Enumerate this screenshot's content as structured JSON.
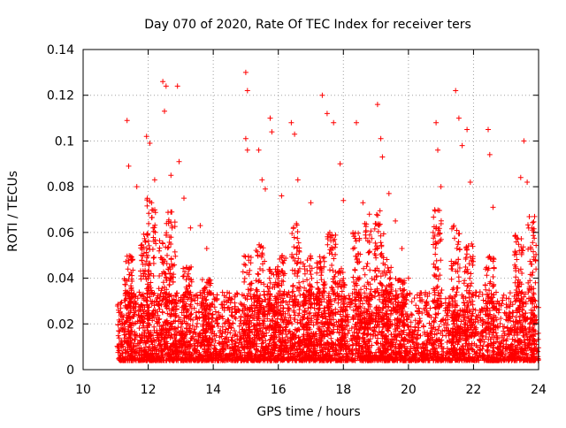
{
  "chart_data": {
    "type": "scatter",
    "title": "Day 070 of 2020, Rate Of TEC Index for receiver ters",
    "xlabel": "GPS time / hours",
    "ylabel": "ROTI / TECUs",
    "xlim": [
      10,
      24
    ],
    "ylim": [
      0,
      0.14
    ],
    "x_ticks": [
      10,
      12,
      14,
      16,
      18,
      20,
      22,
      24
    ],
    "x_tick_labels": [
      "10",
      "12",
      "14",
      "16",
      "18",
      "20",
      "22",
      "24"
    ],
    "y_ticks": [
      0,
      0.02,
      0.04,
      0.06,
      0.08,
      0.1,
      0.12,
      0.14
    ],
    "y_tick_labels": [
      "0",
      "0.02",
      "0.04",
      "0.06",
      "0.08",
      "0.1",
      "0.12",
      "0.14"
    ],
    "grid": true,
    "marker": "plus",
    "series": [
      {
        "name": "ROTI",
        "color": "#ff0000",
        "data_extent": {
          "x_start": 11.05,
          "x_end": 24.0
        },
        "peaks": [
          [
            11.35,
            0.109
          ],
          [
            11.4,
            0.089
          ],
          [
            11.65,
            0.08
          ],
          [
            11.95,
            0.102
          ],
          [
            12.05,
            0.099
          ],
          [
            12.2,
            0.083
          ],
          [
            12.45,
            0.126
          ],
          [
            12.55,
            0.124
          ],
          [
            12.5,
            0.113
          ],
          [
            12.7,
            0.085
          ],
          [
            12.9,
            0.124
          ],
          [
            12.95,
            0.091
          ],
          [
            13.1,
            0.075
          ],
          [
            13.3,
            0.062
          ],
          [
            13.6,
            0.063
          ],
          [
            13.8,
            0.053
          ],
          [
            15.0,
            0.13
          ],
          [
            15.05,
            0.122
          ],
          [
            15.0,
            0.101
          ],
          [
            15.05,
            0.096
          ],
          [
            15.4,
            0.096
          ],
          [
            15.5,
            0.083
          ],
          [
            15.6,
            0.079
          ],
          [
            15.75,
            0.11
          ],
          [
            15.8,
            0.104
          ],
          [
            16.1,
            0.076
          ],
          [
            16.4,
            0.108
          ],
          [
            16.5,
            0.103
          ],
          [
            16.6,
            0.083
          ],
          [
            17.0,
            0.073
          ],
          [
            17.35,
            0.12
          ],
          [
            17.5,
            0.112
          ],
          [
            17.7,
            0.108
          ],
          [
            17.9,
            0.09
          ],
          [
            18.0,
            0.074
          ],
          [
            18.4,
            0.108
          ],
          [
            18.6,
            0.073
          ],
          [
            18.8,
            0.068
          ],
          [
            19.05,
            0.116
          ],
          [
            19.15,
            0.101
          ],
          [
            19.2,
            0.093
          ],
          [
            19.4,
            0.077
          ],
          [
            19.6,
            0.065
          ],
          [
            19.8,
            0.053
          ],
          [
            20.0,
            0.04
          ],
          [
            20.85,
            0.108
          ],
          [
            20.9,
            0.096
          ],
          [
            21.0,
            0.08
          ],
          [
            21.45,
            0.122
          ],
          [
            21.55,
            0.11
          ],
          [
            21.65,
            0.098
          ],
          [
            21.8,
            0.105
          ],
          [
            21.9,
            0.082
          ],
          [
            22.45,
            0.105
          ],
          [
            22.5,
            0.094
          ],
          [
            22.6,
            0.071
          ],
          [
            23.45,
            0.084
          ],
          [
            23.55,
            0.1
          ],
          [
            23.65,
            0.082
          ],
          [
            23.8,
            0.062
          ]
        ],
        "hotspots": [
          [
            11.4,
            0.05
          ],
          [
            11.9,
            0.06
          ],
          [
            12.1,
            0.075
          ],
          [
            12.45,
            0.06
          ],
          [
            12.7,
            0.07
          ],
          [
            13.2,
            0.045
          ],
          [
            13.8,
            0.04
          ],
          [
            15.05,
            0.05
          ],
          [
            15.45,
            0.055
          ],
          [
            15.8,
            0.045
          ],
          [
            16.1,
            0.05
          ],
          [
            16.55,
            0.065
          ],
          [
            16.9,
            0.05
          ],
          [
            17.3,
            0.05
          ],
          [
            17.65,
            0.06
          ],
          [
            17.95,
            0.045
          ],
          [
            18.4,
            0.06
          ],
          [
            18.75,
            0.065
          ],
          [
            19.1,
            0.07
          ],
          [
            19.35,
            0.05
          ],
          [
            19.75,
            0.04
          ],
          [
            20.9,
            0.07
          ],
          [
            21.45,
            0.065
          ],
          [
            21.85,
            0.055
          ],
          [
            22.5,
            0.05
          ],
          [
            23.4,
            0.06
          ],
          [
            23.8,
            0.07
          ]
        ]
      }
    ]
  }
}
